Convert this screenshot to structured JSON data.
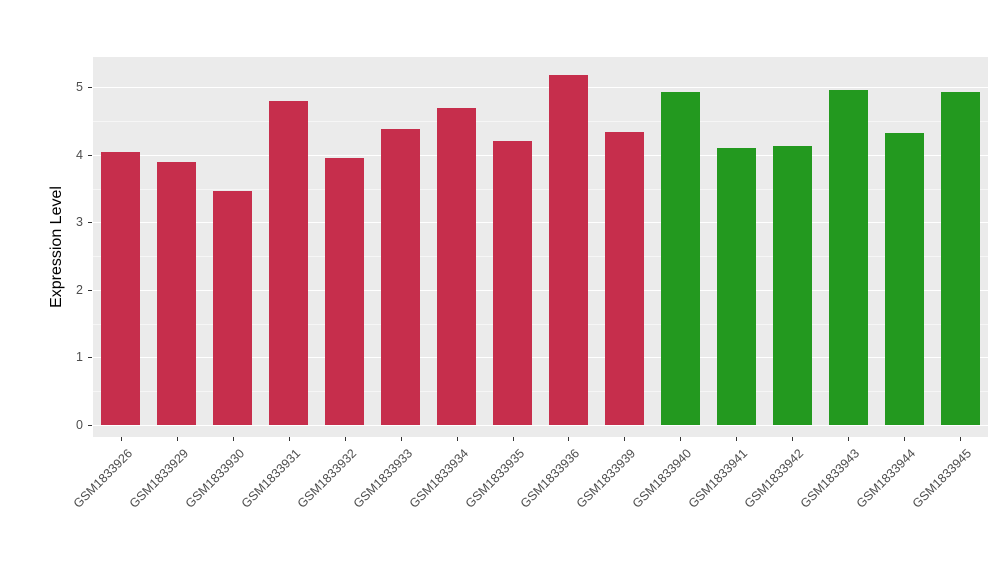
{
  "chart_data": {
    "type": "bar",
    "title": "",
    "xlabel": "",
    "ylabel": "Expression Level",
    "ylim": [
      0,
      5.45
    ],
    "yticks": [
      0,
      1,
      2,
      3,
      4,
      5
    ],
    "grid": "on",
    "legend": "none",
    "categories": [
      "GSM1833926",
      "GSM1833929",
      "GSM1833930",
      "GSM1833931",
      "GSM1833932",
      "GSM1833933",
      "GSM1833934",
      "GSM1833935",
      "GSM1833936",
      "GSM1833939",
      "GSM1833940",
      "GSM1833941",
      "GSM1833942",
      "GSM1833943",
      "GSM1833944",
      "GSM1833945"
    ],
    "values": [
      4.05,
      3.9,
      3.46,
      4.8,
      3.96,
      4.38,
      4.7,
      4.2,
      5.18,
      4.34,
      4.93,
      4.1,
      4.13,
      4.96,
      4.33,
      4.93
    ],
    "bar_colors": [
      "#C62E4C",
      "#C62E4C",
      "#C62E4C",
      "#C62E4C",
      "#C62E4C",
      "#C62E4C",
      "#C62E4C",
      "#C62E4C",
      "#C62E4C",
      "#C62E4C",
      "#23991F",
      "#23991F",
      "#23991F",
      "#23991F",
      "#23991F",
      "#23991F"
    ],
    "colors": {
      "group1": "#C62E4C",
      "group2": "#23991F",
      "panel_background": "#EBEBEB",
      "gridline": "#FFFFFF",
      "axis_text": "#4D4D4D"
    }
  }
}
